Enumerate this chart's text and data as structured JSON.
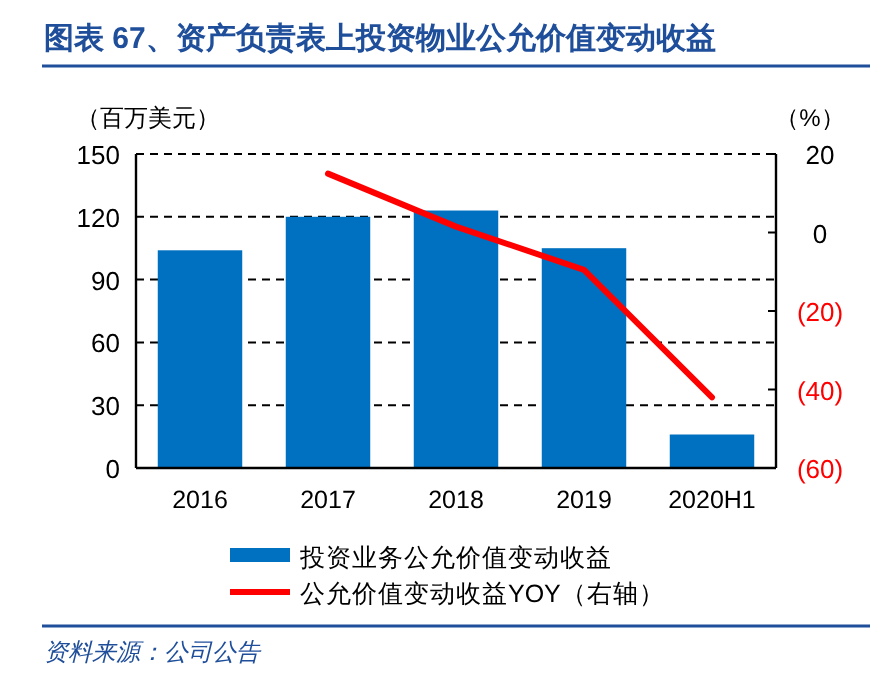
{
  "chart_data": {
    "type": "bar",
    "title": "图表 67、资产负责表上投资物业公允价值变动收益",
    "ylabel": "（百万美元）",
    "y2label": "（%）",
    "categories": [
      "2016",
      "2017",
      "2018",
      "2019",
      "2020H1"
    ],
    "series": [
      {
        "name": "投资业务公允价值变动收益",
        "color": "#0070c0",
        "values": [
          104,
          120,
          123,
          105,
          16
        ]
      },
      {
        "name": "公允价值变动收益YOY（右轴）",
        "type": "line",
        "axis": "y2",
        "color": "#ff0000",
        "values": [
          null,
          15,
          1.5,
          -9.5,
          -42
        ]
      }
    ],
    "ylim": [
      0,
      150
    ],
    "yticks": [
      0,
      30,
      60,
      90,
      120,
      150
    ],
    "y2lim": [
      -60,
      20
    ],
    "y2ticks": [
      {
        "value": -60,
        "label": "(60)"
      },
      {
        "value": -40,
        "label": "(40)"
      },
      {
        "value": -20,
        "label": "(20)"
      },
      0,
      20
    ],
    "grid": "y",
    "legend": "bottom",
    "annotations": [
      "资料来源：公司公告"
    ]
  }
}
